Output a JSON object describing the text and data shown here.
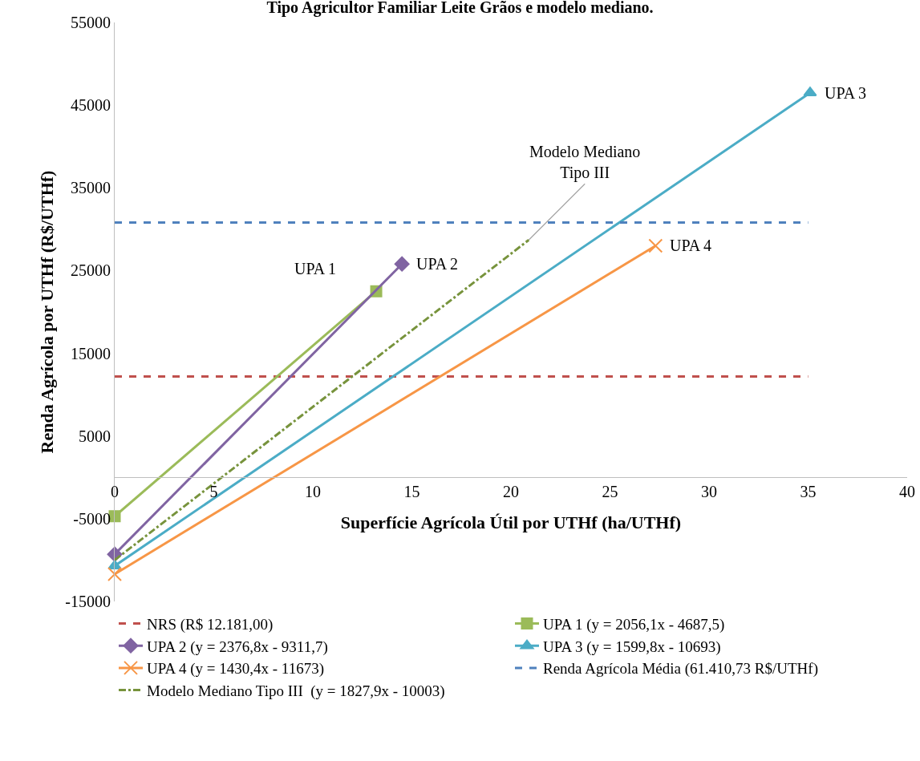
{
  "chart_data": {
    "type": "line",
    "title": "Tipo Agricultor Familiar Leite Grãos e modelo mediano.",
    "xlabel": "Superfície Agrícola Útil por UTHf (ha/UTHf)",
    "ylabel": "Renda Agrícola por UTHf (R$/UTHf)",
    "xlim": [
      0,
      40
    ],
    "xticks": [
      0,
      5,
      10,
      15,
      20,
      25,
      30,
      35,
      40
    ],
    "ylim": [
      -15000,
      55000
    ],
    "yticks": [
      -15000,
      -5000,
      5000,
      15000,
      25000,
      35000,
      45000,
      55000
    ],
    "grid": false,
    "legend": "bottom",
    "series": [
      {
        "name": "NRS (R$ 12.181,00)",
        "color": "#c0504d",
        "x": [
          0,
          35
        ],
        "values": [
          12200,
          12200
        ],
        "line_style": "dashed",
        "marker": "none"
      },
      {
        "name": "UPA 1 (y = 2056,1x - 4687,5)",
        "color": "#9bbb59",
        "x": [
          0,
          13.2
        ],
        "values": [
          -4700,
          22500
        ],
        "line_style": "solid",
        "marker": "square"
      },
      {
        "name": "UPA 2 (y = 2376,8x - 9311,7)",
        "color": "#8064a2",
        "x": [
          0,
          14.5
        ],
        "values": [
          -9300,
          25800
        ],
        "line_style": "solid",
        "marker": "diamond"
      },
      {
        "name": "UPA 3 (y = 1599,8x - 10693)",
        "color": "#4bacc6",
        "x": [
          0,
          35.1
        ],
        "values": [
          -10700,
          46500
        ],
        "line_style": "solid",
        "marker": "triangle"
      },
      {
        "name": "UPA 4 (y = 1430,4x - 11673)",
        "color": "#f79646",
        "x": [
          0,
          27.3
        ],
        "values": [
          -11700,
          28000
        ],
        "line_style": "solid",
        "marker": "cross"
      },
      {
        "name": "Renda Agrícola Média (61.410,73 R$/UTHf)",
        "color": "#4f81bd",
        "x": [
          0,
          35
        ],
        "values": [
          30800,
          30800
        ],
        "line_style": "dashed",
        "marker": "none"
      },
      {
        "name": "Modelo Mediano Tipo III  (y = 1827,9x - 10003)",
        "color": "#77933c",
        "x": [
          0,
          20.9
        ],
        "values": [
          -10000,
          28700
        ],
        "line_style": "dashdot",
        "marker": "none"
      }
    ],
    "annotations": [
      "UPA 1",
      {
        "text": "UPA 2",
        "x": 14.5,
        "y": 25800
      },
      {
        "text": "UPA 3",
        "x": 35.1,
        "y": 46500
      },
      {
        "text": "UPA 4",
        "x": 27.3,
        "y": 28000
      },
      {
        "text": "Modelo Mediano\nTipo III",
        "x": 20.9,
        "y": 28700
      }
    ]
  }
}
